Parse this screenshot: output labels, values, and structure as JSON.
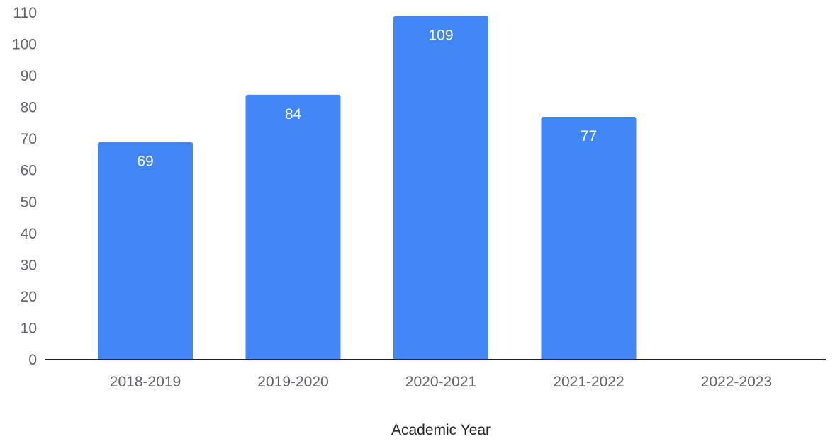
{
  "chart_data": {
    "type": "bar",
    "categories": [
      "2018-2019",
      "2019-2020",
      "2020-2021",
      "2021-2022",
      "2022-2023"
    ],
    "values": [
      69,
      84,
      109,
      77,
      null
    ],
    "data_labels": [
      "69",
      "84",
      "109",
      "77",
      ""
    ],
    "xlabel": "Academic Year",
    "ylabel": "",
    "ylim": [
      0,
      110
    ],
    "yticks": [
      0,
      10,
      20,
      30,
      40,
      50,
      60,
      70,
      80,
      90,
      100,
      110
    ],
    "grid": false,
    "legend": "none",
    "bar_color": "#4285f4",
    "axis_color": "#202124"
  }
}
